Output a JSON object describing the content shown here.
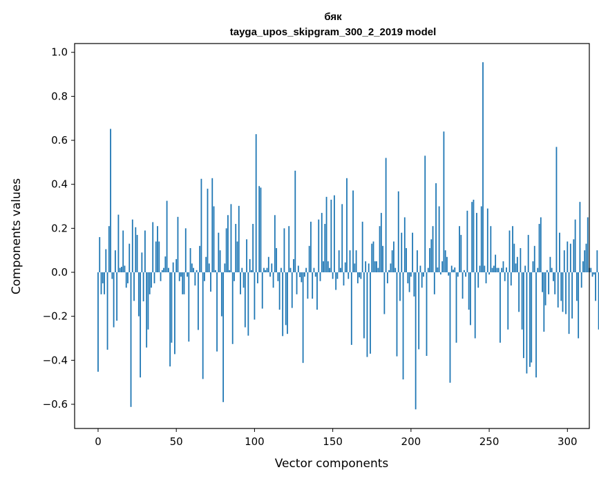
{
  "chart_data": {
    "type": "bar",
    "title": "бяк",
    "subtitle": "tayga_upos_skipgram_300_2_2019 model",
    "xlabel": "Vector components",
    "ylabel": "Components values",
    "xlim": [
      -15,
      314
    ],
    "ylim": [
      -0.71,
      1.04
    ],
    "xticks": [
      0,
      50,
      100,
      150,
      200,
      250,
      300
    ],
    "yticks": [
      -0.6,
      -0.4,
      -0.2,
      0.0,
      0.2,
      0.4,
      0.6,
      0.8,
      1.0
    ],
    "ytick_labels": [
      "−0.6",
      "−0.4",
      "−0.2",
      "0.0",
      "0.2",
      "0.4",
      "0.6",
      "0.8",
      "1.0"
    ],
    "grid": false,
    "bar_color": "#1f77b4",
    "values": [
      -0.452,
      0.16,
      -0.1,
      -0.05,
      -0.1,
      0.105,
      -0.352,
      0.21,
      0.652,
      -0.03,
      -0.25,
      0.1,
      -0.22,
      0.262,
      0.02,
      0.025,
      0.19,
      0.03,
      -0.07,
      -0.05,
      0.13,
      -0.612,
      0.24,
      -0.13,
      0.205,
      0.17,
      -0.2,
      -0.478,
      0.09,
      -0.132,
      0.19,
      -0.342,
      -0.26,
      -0.1,
      -0.07,
      0.228,
      -0.05,
      0.14,
      0.21,
      0.14,
      -0.04,
      0.01,
      0.02,
      0.072,
      0.325,
      0.02,
      -0.428,
      -0.32,
      0.045,
      -0.372,
      0.06,
      0.252,
      -0.04,
      -0.02,
      -0.1,
      -0.1,
      0.2,
      -0.02,
      -0.315,
      0.11,
      0.04,
      0.02,
      -0.06,
      0.01,
      -0.262,
      0.12,
      0.425,
      -0.485,
      -0.04,
      0.07,
      0.38,
      0.04,
      -0.088,
      0.428,
      0.3,
      0.01,
      -0.36,
      0.18,
      0.1,
      -0.2,
      -0.59,
      0.04,
      0.2,
      0.26,
      0.01,
      0.31,
      -0.326,
      -0.04,
      0.22,
      0.14,
      0.302,
      -0.1,
      0.02,
      -0.07,
      -0.25,
      0.15,
      -0.288,
      0.06,
      0.01,
      0.22,
      -0.215,
      0.628,
      -0.05,
      0.392,
      0.385,
      -0.165,
      0.02,
      0.01,
      0.02,
      0.07,
      -0.02,
      0.04,
      -0.07,
      0.26,
      0.11,
      -0.04,
      -0.17,
      0.02,
      -0.29,
      0.2,
      -0.24,
      -0.28,
      0.21,
      0.02,
      -0.162,
      0.06,
      0.462,
      -0.1,
      0.03,
      -0.022,
      -0.045,
      -0.412,
      -0.02,
      0.02,
      -0.12,
      0.12,
      0.23,
      -0.12,
      0.02,
      -0.02,
      -0.17,
      0.24,
      -0.04,
      0.27,
      0.05,
      0.22,
      0.343,
      0.05,
      0.02,
      0.33,
      -0.03,
      0.35,
      -0.08,
      -0.03,
      0.1,
      0.02,
      0.31,
      -0.06,
      0.045,
      0.428,
      -0.03,
      0.1,
      -0.33,
      0.372,
      0.04,
      0.1,
      -0.05,
      -0.023,
      -0.03,
      0.23,
      -0.3,
      0.05,
      -0.385,
      0.04,
      -0.37,
      0.13,
      0.14,
      0.05,
      0.05,
      0.02,
      0.21,
      0.27,
      0.12,
      -0.19,
      0.52,
      -0.05,
      0.01,
      0.04,
      0.1,
      0.14,
      0.02,
      -0.382,
      0.368,
      -0.13,
      0.18,
      -0.487,
      0.25,
      0.11,
      -0.05,
      -0.09,
      -0.02,
      0.18,
      -0.11,
      -0.623,
      0.1,
      -0.35,
      0.03,
      -0.07,
      -0.02,
      0.53,
      -0.38,
      0.02,
      0.11,
      0.15,
      0.21,
      -0.1,
      0.405,
      0.022,
      0.3,
      -0.01,
      0.05,
      0.64,
      0.1,
      0.07,
      -0.015,
      -0.502,
      0.03,
      0.012,
      0.022,
      -0.32,
      -0.02,
      0.21,
      0.17,
      -0.12,
      0.01,
      -0.02,
      0.28,
      -0.17,
      -0.24,
      0.32,
      0.33,
      -0.3,
      0.27,
      -0.07,
      0.03,
      0.3,
      0.955,
      0.03,
      -0.05,
      0.29,
      -0.01,
      0.21,
      0.02,
      0.03,
      0.08,
      0.02,
      0.02,
      -0.32,
      0.02,
      0.05,
      -0.04,
      0.022,
      -0.26,
      0.19,
      -0.06,
      0.21,
      0.13,
      0.04,
      0.07,
      -0.18,
      0.11,
      -0.26,
      -0.39,
      0.03,
      -0.46,
      0.17,
      -0.43,
      -0.41,
      0.05,
      0.12,
      -0.478,
      0.02,
      0.22,
      0.25,
      -0.09,
      -0.27,
      -0.15,
      0.01,
      -0.1,
      0.07,
      0.02,
      -0.04,
      -0.1,
      0.57,
      -0.16,
      0.18,
      -0.13,
      -0.18,
      0.1,
      -0.19,
      0.14,
      -0.28,
      0.13,
      -0.21,
      0.15,
      0.24,
      -0.13,
      -0.3,
      0.32,
      -0.07,
      0.05,
      0.1,
      0.13,
      0.25,
      0.02,
      0.02,
      -0.02,
      -0.01,
      -0.13,
      0.1,
      -0.26
    ]
  }
}
